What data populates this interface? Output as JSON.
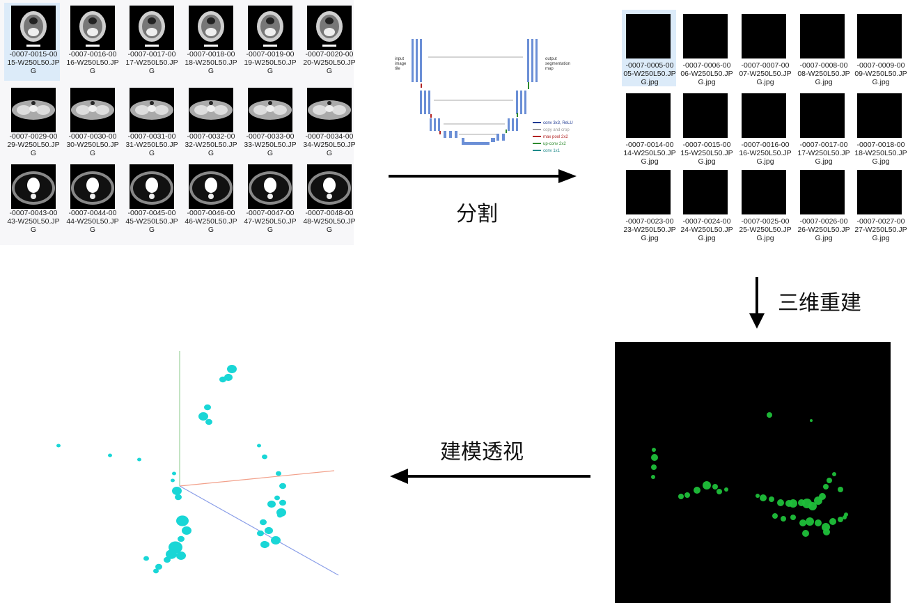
{
  "ct_slices": [
    {
      "label": "-0007-0015-00\n15-W250L50.JP\nG",
      "selected": true
    },
    {
      "label": "-0007-0016-00\n16-W250L50.JP\nG"
    },
    {
      "label": "-0007-0017-00\n17-W250L50.JP\nG"
    },
    {
      "label": "-0007-0018-00\n18-W250L50.JP\nG"
    },
    {
      "label": "-0007-0019-00\n19-W250L50.JP\nG"
    },
    {
      "label": "-0007-0020-00\n20-W250L50.JP\nG"
    },
    {
      "label": "-0007-0029-00\n29-W250L50.JP\nG"
    },
    {
      "label": "-0007-0030-00\n30-W250L50.JP\nG"
    },
    {
      "label": "-0007-0031-00\n31-W250L50.JP\nG"
    },
    {
      "label": "-0007-0032-00\n32-W250L50.JP\nG"
    },
    {
      "label": "-0007-0033-00\n33-W250L50.JP\nG"
    },
    {
      "label": "-0007-0034-00\n34-W250L50.JP\nG"
    },
    {
      "label": "-0007-0043-00\n43-W250L50.JP\nG"
    },
    {
      "label": "-0007-0044-00\n44-W250L50.JP\nG"
    },
    {
      "label": "-0007-0045-00\n45-W250L50.JP\nG"
    },
    {
      "label": "-0007-0046-00\n46-W250L50.JP\nG"
    },
    {
      "label": "-0007-0047-00\n47-W250L50.JP\nG"
    },
    {
      "label": "-0007-0048-00\n48-W250L50.JP\nG"
    }
  ],
  "mask_slices": [
    {
      "label": "-0007-0005-00\n05-W250L50.JP\nG.jpg",
      "selected": true
    },
    {
      "label": "-0007-0006-00\n06-W250L50.JP\nG.jpg"
    },
    {
      "label": "-0007-0007-00\n07-W250L50.JP\nG.jpg"
    },
    {
      "label": "-0007-0008-00\n08-W250L50.JP\nG.jpg"
    },
    {
      "label": "-0007-0009-00\n09-W250L50.JP\nG.jpg"
    },
    {
      "label": "-0007-0014-00\n14-W250L50.JP\nG.jpg"
    },
    {
      "label": "-0007-0015-00\n15-W250L50.JP\nG.jpg"
    },
    {
      "label": "-0007-0016-00\n16-W250L50.JP\nG.jpg"
    },
    {
      "label": "-0007-0017-00\n17-W250L50.JP\nG.jpg"
    },
    {
      "label": "-0007-0018-00\n18-W250L50.JP\nG.jpg"
    },
    {
      "label": "-0007-0023-00\n23-W250L50.JP\nG.jpg"
    },
    {
      "label": "-0007-0024-00\n24-W250L50.JP\nG.jpg"
    },
    {
      "label": "-0007-0025-00\n25-W250L50.JP\nG.jpg"
    },
    {
      "label": "-0007-0026-00\n26-W250L50.JP\nG.jpg"
    },
    {
      "label": "-0007-0027-00\n27-W250L50.JP\nG.jpg"
    }
  ],
  "unet": {
    "input_label": "input\nimage\ntile",
    "output_label": "output\nsegmentation\nmap",
    "legend": [
      {
        "text": "conv 3x3, ReLU",
        "color": "#1f3a93"
      },
      {
        "text": "copy and crop",
        "color": "#999999"
      },
      {
        "text": "max pool 2x2",
        "color": "#b22222"
      },
      {
        "text": "up-conv 2x2",
        "color": "#2e8b2e"
      },
      {
        "text": "conv 1x1",
        "color": "#1e8a8a"
      }
    ]
  },
  "steps": {
    "segment": "分割",
    "reconstruct": "三维重建",
    "render": "建模透视"
  },
  "colors": {
    "nodule_green": "#1fbf3a",
    "nodule_cyan": "#19d6d6",
    "axis_red": "#f2a08a",
    "axis_green": "#9ed39e",
    "axis_blue": "#8a9ee8"
  }
}
